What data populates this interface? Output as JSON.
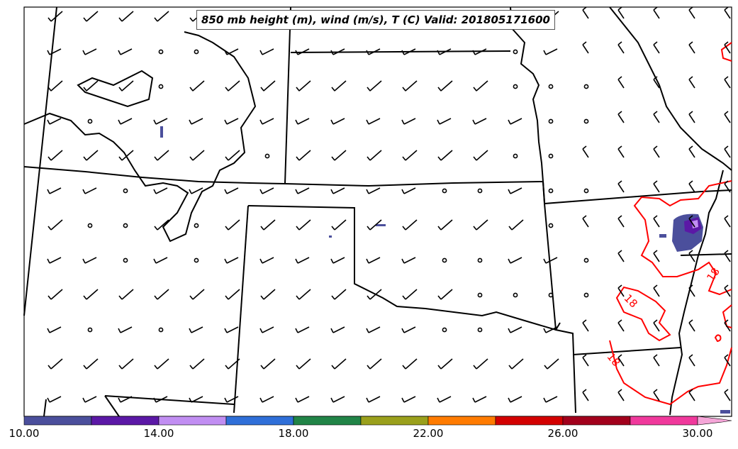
{
  "title": "850 mb height (m), wind (m/s), T (C) Valid: 201805171600",
  "contour_labels": [
    "18",
    "18",
    "18",
    "0"
  ],
  "colorbar": {
    "ticks": [
      "10.00",
      "14.00",
      "18.00",
      "22.00",
      "26.00",
      "30.00"
    ],
    "colors": [
      "#4b4f9c",
      "#5b18a6",
      "#c18ef2",
      "#2f6fd8",
      "#218447",
      "#9aa01c",
      "#ff7b00",
      "#d30000",
      "#a2001c",
      "#f0399c",
      "#f5a6d8"
    ]
  },
  "colors": {
    "state_lines": "#000000",
    "temperature_contour": "#ff0000",
    "shading_low": "#4b4f9c",
    "shading_mid": "#5b18a6",
    "shading_high": "#c18ef2"
  }
}
